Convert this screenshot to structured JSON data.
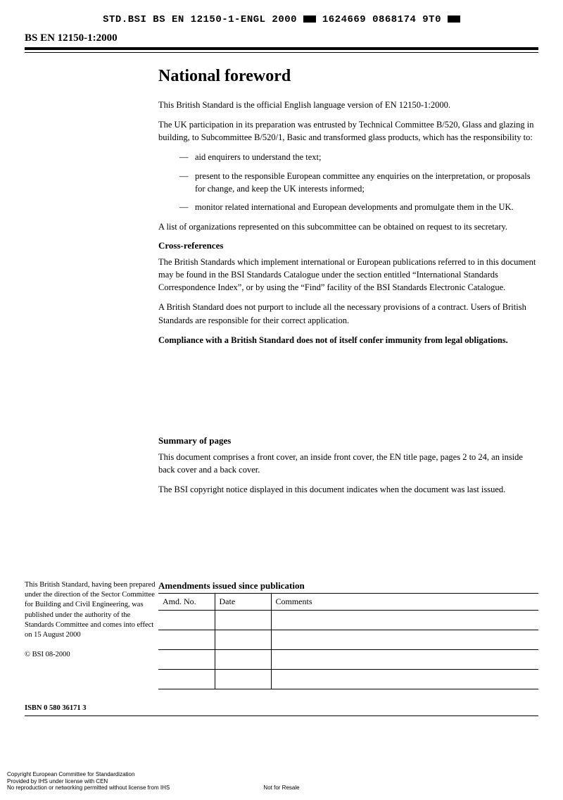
{
  "header": {
    "code_prefix": "STD.BSI BS EN 12150-1-ENGL 2000",
    "code_suffix": "1624669 0868174 9T0",
    "doc_id": "BS EN 12150-1:2000"
  },
  "main": {
    "title": "National foreword",
    "para1": "This British Standard is the official English language version of EN 12150-1:2000.",
    "para2": "The UK participation in its preparation was entrusted by Technical Committee B/520, Glass and glazing in building, to Subcommittee B/520/1, Basic and transformed glass products, which has the responsibility to:",
    "bullets": [
      "aid enquirers to understand the text;",
      "present to the responsible European committee any enquiries on the interpretation, or proposals for change, and keep the UK interests informed;",
      "monitor related international and European developments and promulgate them in the UK."
    ],
    "para3": "A list of organizations represented on this subcommittee can be obtained on request to its secretary.",
    "sub1": "Cross-references",
    "para4": "The British Standards which implement international or European publications referred to in this document may be found in the BSI Standards Catalogue under the section entitled “International Standards Correspondence Index”, or by using the “Find” facility of the BSI Standards Electronic Catalogue.",
    "para5": "A British Standard does not purport to include all the necessary provisions of a contract. Users of British Standards are responsible for their correct application.",
    "bold1": "Compliance with a British Standard does not of itself confer immunity from legal obligations.",
    "sub2": "Summary of pages",
    "para6": "This document comprises a front cover, an inside front cover, the EN title page, pages 2 to 24, an inside back cover and a back cover.",
    "para7": "The BSI copyright notice displayed in this document indicates when the document was last issued."
  },
  "side": {
    "note": "This British Standard, having been prepared under the direction of the Sector Committee for Building and Civil Engineering, was published under the authority of the Standards Committee and comes into effect on 15 August 2000",
    "copyright": "© BSI 08-2000",
    "isbn": "ISBN 0 580 36171 3"
  },
  "amendments": {
    "title": "Amendments issued since publication",
    "columns": [
      "Amd. No.",
      "Date",
      "Comments"
    ],
    "rows": [
      [
        "",
        "",
        ""
      ],
      [
        "",
        "",
        ""
      ],
      [
        "",
        "",
        ""
      ],
      [
        "",
        "",
        ""
      ]
    ]
  },
  "footer": {
    "line1": "Copyright European Committee for Standardization",
    "line2": "Provided by IHS under license with CEN",
    "line3": "No reproduction or networking permitted without license from IHS",
    "nfr": "Not for Resale"
  }
}
